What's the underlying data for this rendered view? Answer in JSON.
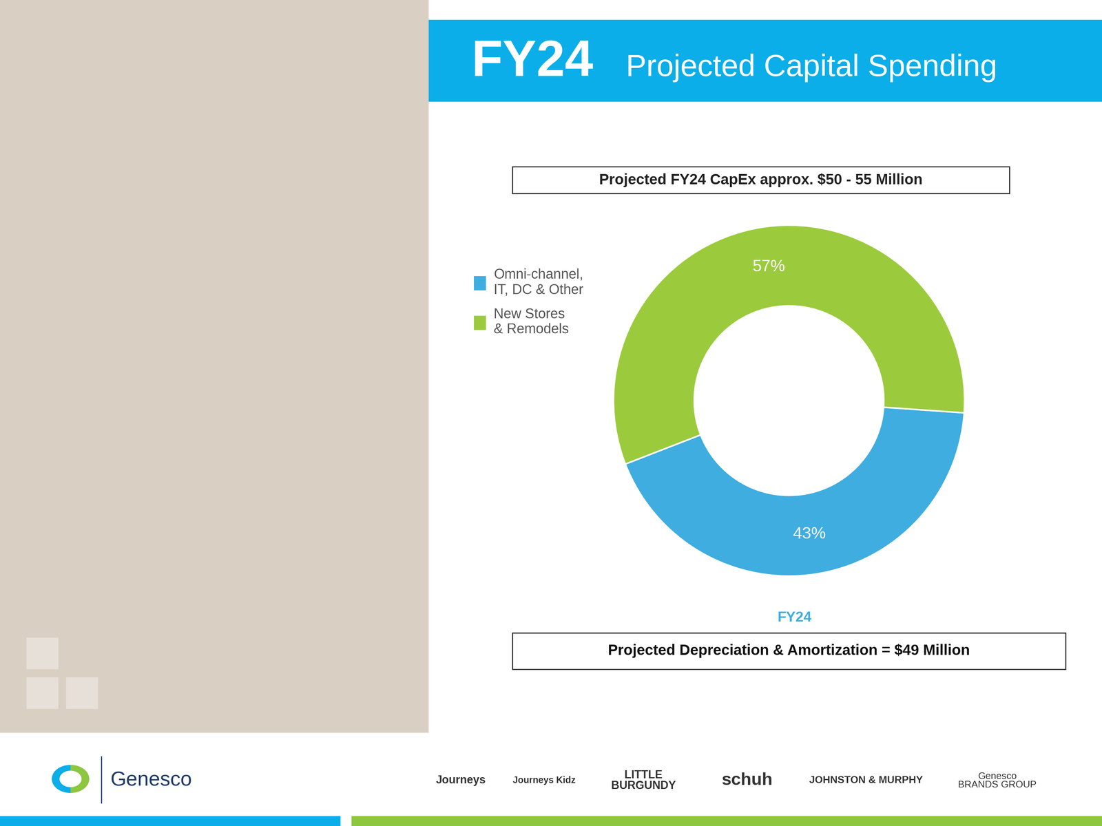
{
  "chart_data": {
    "type": "donut",
    "title": "FY24",
    "subtitle": "Projected Capital Spending",
    "header_note": "Projected FY24 CapEx approx. $50 - 55 Million",
    "x_label": "FY24",
    "footer_note": "Projected Depreciation & Amortization = $49 Million",
    "categories": [
      "Omni-channel,\nIT, DC & Other",
      "New Stores\n& Remodels"
    ],
    "values": [
      43,
      57
    ],
    "value_labels": [
      "43%",
      "57%"
    ],
    "colors": [
      "#3FADE0",
      "#9BCB3C"
    ],
    "legend": "upper left",
    "data_labels": true
  },
  "footer": {
    "company": "Genesco",
    "brands": [
      "Journeys",
      "Journeys Kidz",
      "LITTLE\nBURGUNDY",
      "schuh",
      "JOHNSTON & MURPHY",
      "Genesco\nBRANDS GROUP"
    ]
  }
}
